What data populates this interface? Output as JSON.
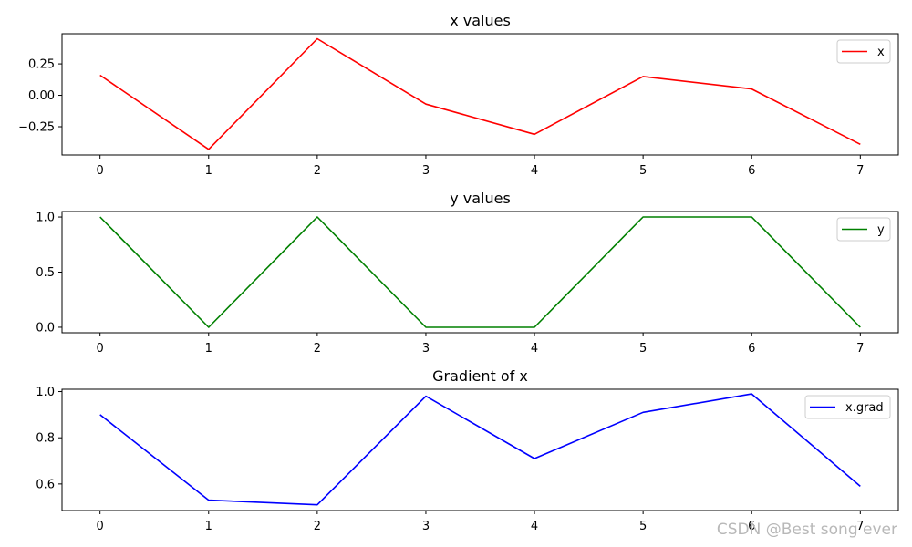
{
  "chart_data": [
    {
      "type": "line",
      "title": "x values",
      "x": [
        0,
        1,
        2,
        3,
        4,
        5,
        6,
        7
      ],
      "series": [
        {
          "name": "x",
          "color": "#ff0000",
          "values": [
            0.16,
            -0.43,
            0.45,
            -0.07,
            -0.31,
            0.15,
            0.05,
            -0.39
          ]
        }
      ],
      "xlim": [
        -0.35,
        7.35
      ],
      "ylim": [
        -0.475,
        0.49
      ],
      "xticks": [
        0,
        1,
        2,
        3,
        4,
        5,
        6,
        7
      ],
      "xtick_labels": [
        "0",
        "1",
        "2",
        "3",
        "4",
        "5",
        "6",
        "7"
      ],
      "yticks": [
        0.25,
        0.0,
        -0.25
      ],
      "ytick_labels": [
        "0.25",
        "0.00",
        "−0.25"
      ],
      "grid": false,
      "legend": "upper right"
    },
    {
      "type": "line",
      "title": "y values",
      "x": [
        0,
        1,
        2,
        3,
        4,
        5,
        6,
        7
      ],
      "series": [
        {
          "name": "y",
          "color": "#008000",
          "values": [
            1,
            0,
            1,
            0,
            0,
            1,
            1,
            0
          ]
        }
      ],
      "xlim": [
        -0.35,
        7.35
      ],
      "ylim": [
        -0.05,
        1.05
      ],
      "xticks": [
        0,
        1,
        2,
        3,
        4,
        5,
        6,
        7
      ],
      "xtick_labels": [
        "0",
        "1",
        "2",
        "3",
        "4",
        "5",
        "6",
        "7"
      ],
      "yticks": [
        1.0,
        0.5,
        0.0
      ],
      "ytick_labels": [
        "1.0",
        "0.5",
        "0.0"
      ],
      "grid": false,
      "legend": "upper right"
    },
    {
      "type": "line",
      "title": "Gradient of x",
      "x": [
        0,
        1,
        2,
        3,
        4,
        5,
        6,
        7
      ],
      "series": [
        {
          "name": "x.grad",
          "color": "#0000ff",
          "values": [
            0.9,
            0.53,
            0.51,
            0.98,
            0.71,
            0.91,
            0.99,
            0.59
          ]
        }
      ],
      "xlim": [
        -0.35,
        7.35
      ],
      "ylim": [
        0.485,
        1.01
      ],
      "xticks": [
        0,
        1,
        2,
        3,
        4,
        5,
        6,
        7
      ],
      "xtick_labels": [
        "0",
        "1",
        "2",
        "3",
        "4",
        "5",
        "6",
        "7"
      ],
      "yticks": [
        1.0,
        0.8,
        0.6
      ],
      "ytick_labels": [
        "1.0",
        "0.8",
        "0.6"
      ],
      "grid": false,
      "legend": "upper right"
    }
  ],
  "watermark": "CSDN @Best song ever"
}
